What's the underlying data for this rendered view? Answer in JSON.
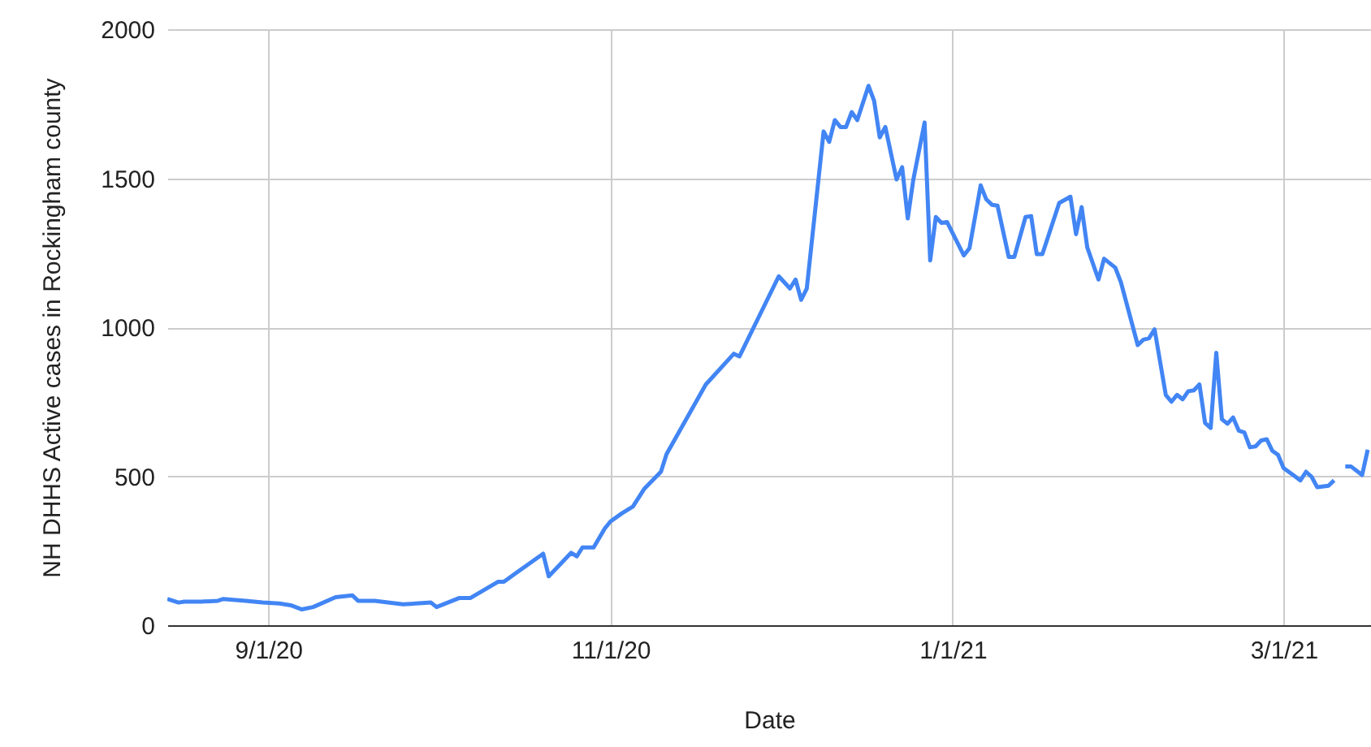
{
  "chart_data": {
    "type": "line",
    "xlabel": "Date",
    "ylabel": "NH DHHS Active cases in Rockingham county",
    "x": [
      "2020-08-14",
      "2020-08-16",
      "2020-08-17",
      "2020-08-20",
      "2020-08-23",
      "2020-08-24",
      "2020-08-28",
      "2020-08-31",
      "2020-09-03",
      "2020-09-05",
      "2020-09-07",
      "2020-09-09",
      "2020-09-13",
      "2020-09-16",
      "2020-09-17",
      "2020-09-20",
      "2020-09-25",
      "2020-09-30",
      "2020-10-01",
      "2020-10-05",
      "2020-10-07",
      "2020-10-12",
      "2020-10-13",
      "2020-10-15",
      "2020-10-20",
      "2020-10-21",
      "2020-10-25",
      "2020-10-26",
      "2020-10-27",
      "2020-10-29",
      "2020-10-31",
      "2020-11-01",
      "2020-11-03",
      "2020-11-05",
      "2020-11-07",
      "2020-11-10",
      "2020-11-11",
      "2020-11-18",
      "2020-11-23",
      "2020-11-24",
      "2020-12-01",
      "2020-12-03",
      "2020-12-04",
      "2020-12-05",
      "2020-12-06",
      "2020-12-09",
      "2020-12-10",
      "2020-12-11",
      "2020-12-12",
      "2020-12-13",
      "2020-12-14",
      "2020-12-15",
      "2020-12-17",
      "2020-12-18",
      "2020-12-19",
      "2020-12-20",
      "2020-12-22",
      "2020-12-23",
      "2020-12-24",
      "2020-12-25",
      "2020-12-27",
      "2020-12-28",
      "2020-12-29",
      "2020-12-30",
      "2020-12-31",
      "2021-01-03",
      "2021-01-04",
      "2021-01-06",
      "2021-01-07",
      "2021-01-08",
      "2021-01-09",
      "2021-01-11",
      "2021-01-12",
      "2021-01-14",
      "2021-01-15",
      "2021-01-16",
      "2021-01-17",
      "2021-01-20",
      "2021-01-22",
      "2021-01-23",
      "2021-01-24",
      "2021-01-25",
      "2021-01-27",
      "2021-01-28",
      "2021-01-30",
      "2021-01-31",
      "2021-02-03",
      "2021-02-04",
      "2021-02-05",
      "2021-02-06",
      "2021-02-08",
      "2021-02-09",
      "2021-02-10",
      "2021-02-11",
      "2021-02-12",
      "2021-02-13",
      "2021-02-14",
      "2021-02-15",
      "2021-02-16",
      "2021-02-17",
      "2021-02-18",
      "2021-02-19",
      "2021-02-20",
      "2021-02-21",
      "2021-02-22",
      "2021-02-23",
      "2021-02-24",
      "2021-02-25",
      "2021-02-26",
      "2021-02-27",
      "2021-02-28",
      "2021-03-01",
      "2021-03-03",
      "2021-03-04",
      "2021-03-05",
      "2021-03-06",
      "2021-03-07",
      "2021-03-09",
      "2021-03-10",
      "2021-03-11",
      "2021-03-12",
      "2021-03-13",
      "2021-03-15",
      "2021-03-16"
    ],
    "series": [
      {
        "color": "#4285f4",
        "values": [
          88,
          76,
          79,
          79,
          82,
          88,
          82,
          76,
          73,
          67,
          53,
          61,
          94,
          100,
          82,
          82,
          70,
          76,
          61,
          91,
          91,
          146,
          146,
          173,
          240,
          164,
          243,
          231,
          261,
          261,
          325,
          348,
          375,
          398,
          457,
          515,
          574,
          808,
          911,
          902,
          1171,
          1130,
          1160,
          1092,
          1130,
          1657,
          1622,
          1695,
          1672,
          1672,
          1722,
          1695,
          1810,
          1760,
          1637,
          1672,
          1496,
          1537,
          1365,
          1496,
          1687,
          1224,
          1370,
          1350,
          1353,
          1241,
          1265,
          1476,
          1429,
          1411,
          1408,
          1236,
          1236,
          1370,
          1373,
          1245,
          1245,
          1417,
          1438,
          1312,
          1403,
          1268,
          1160,
          1230,
          1200,
          1151,
          940,
          958,
          963,
          993,
          773,
          750,
          773,
          758,
          785,
          788,
          808,
          679,
          662,
          914,
          691,
          676,
          697,
          653,
          647,
          597,
          600,
          620,
          624,
          585,
          572,
          527,
          500,
          486,
          515,
          498,
          463,
          468,
          486,
          null,
          533,
          533,
          504,
          589
        ]
      }
    ],
    "xlim": [
      "2020-08-14",
      "2021-03-16T14:00"
    ],
    "xticks": [
      {
        "value": "2020-09-01",
        "label": "9/1/20"
      },
      {
        "value": "2020-11-01",
        "label": "11/1/20"
      },
      {
        "value": "2021-01-01",
        "label": "1/1/21"
      },
      {
        "value": "2021-03-01",
        "label": "3/1/21"
      }
    ],
    "ylim": [
      0,
      2000
    ],
    "yticks": [
      0,
      500,
      1000,
      1500,
      2000
    ],
    "grid": true,
    "line_style": "solid",
    "marker": "none"
  }
}
